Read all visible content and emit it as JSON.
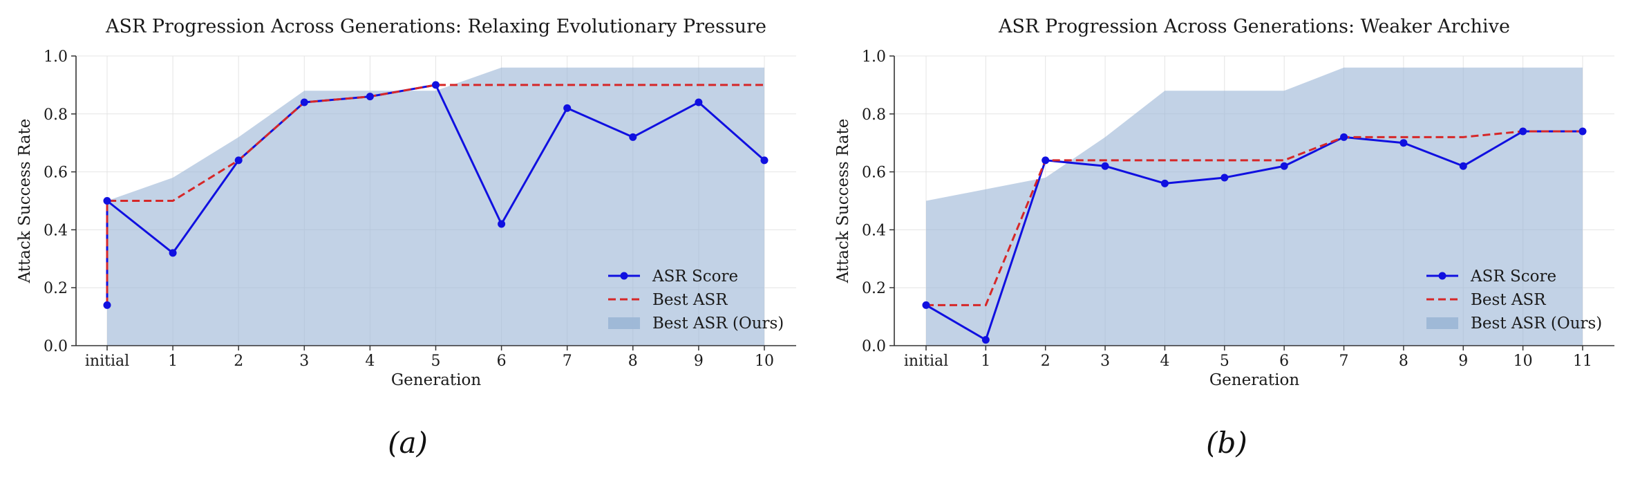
{
  "chart_data": [
    {
      "type": "line",
      "title": "ASR Progression Across Generations: Relaxing Evolutionary Pressure",
      "xlabel": "Generation",
      "ylabel": "Attack Success Rate",
      "ylim": [
        0,
        1
      ],
      "yticks": [
        "0.0",
        "0.2",
        "0.4",
        "0.6",
        "0.8",
        "1.0"
      ],
      "categories": [
        "initial",
        "1",
        "2",
        "3",
        "4",
        "5",
        "6",
        "7",
        "8",
        "9",
        "10"
      ],
      "grid": true,
      "legend_position": "lower-right",
      "series": [
        {
          "name": "Best ASR (Ours)",
          "style": "area",
          "color": "#9db7d6",
          "x": [
            0,
            1,
            2,
            3,
            4,
            5,
            6,
            7,
            8,
            9,
            10
          ],
          "values": [
            0.5,
            0.58,
            0.72,
            0.88,
            0.88,
            0.88,
            0.96,
            0.96,
            0.96,
            0.96,
            0.96
          ]
        },
        {
          "name": "Best ASR",
          "style": "dashed",
          "color": "#d62728",
          "x": [
            0,
            0,
            1,
            2,
            3,
            4,
            5,
            6,
            7,
            8,
            9,
            10
          ],
          "values": [
            0.14,
            0.5,
            0.5,
            0.64,
            0.84,
            0.86,
            0.9,
            0.9,
            0.9,
            0.9,
            0.9,
            0.9
          ]
        },
        {
          "name": "ASR Score",
          "style": "line-marker",
          "color": "#1010e0",
          "x": [
            0,
            0,
            1,
            2,
            3,
            4,
            5,
            6,
            7,
            8,
            9,
            10
          ],
          "values": [
            0.14,
            0.5,
            0.32,
            0.64,
            0.84,
            0.86,
            0.9,
            0.42,
            0.82,
            0.72,
            0.84,
            0.64
          ]
        }
      ],
      "caption": "(a)"
    },
    {
      "type": "line",
      "title": "ASR Progression Across Generations: Weaker Archive",
      "xlabel": "Generation",
      "ylabel": "Attack Success Rate",
      "ylim": [
        0,
        1
      ],
      "yticks": [
        "0.0",
        "0.2",
        "0.4",
        "0.6",
        "0.8",
        "1.0"
      ],
      "categories": [
        "initial",
        "1",
        "2",
        "3",
        "4",
        "5",
        "6",
        "7",
        "8",
        "9",
        "10",
        "11"
      ],
      "grid": true,
      "legend_position": "lower-right",
      "series": [
        {
          "name": "Best ASR (Ours)",
          "style": "area",
          "color": "#9db7d6",
          "x": [
            0,
            1,
            2,
            3,
            4,
            5,
            6,
            7,
            8,
            9,
            10,
            11
          ],
          "values": [
            0.5,
            0.54,
            0.58,
            0.72,
            0.88,
            0.88,
            0.88,
            0.96,
            0.96,
            0.96,
            0.96,
            0.96
          ]
        },
        {
          "name": "Best ASR",
          "style": "dashed",
          "color": "#d62728",
          "x": [
            0,
            1,
            2,
            3,
            4,
            5,
            6,
            7,
            8,
            9,
            10,
            11
          ],
          "values": [
            0.14,
            0.14,
            0.64,
            0.64,
            0.64,
            0.64,
            0.64,
            0.72,
            0.72,
            0.72,
            0.74,
            0.74
          ]
        },
        {
          "name": "ASR Score",
          "style": "line-marker",
          "color": "#1010e0",
          "x": [
            0,
            1,
            2,
            3,
            4,
            5,
            6,
            7,
            8,
            9,
            10,
            11
          ],
          "values": [
            0.14,
            0.02,
            0.64,
            0.62,
            0.56,
            0.58,
            0.62,
            0.72,
            0.7,
            0.62,
            0.74,
            0.74
          ]
        }
      ],
      "caption": "(b)"
    }
  ]
}
